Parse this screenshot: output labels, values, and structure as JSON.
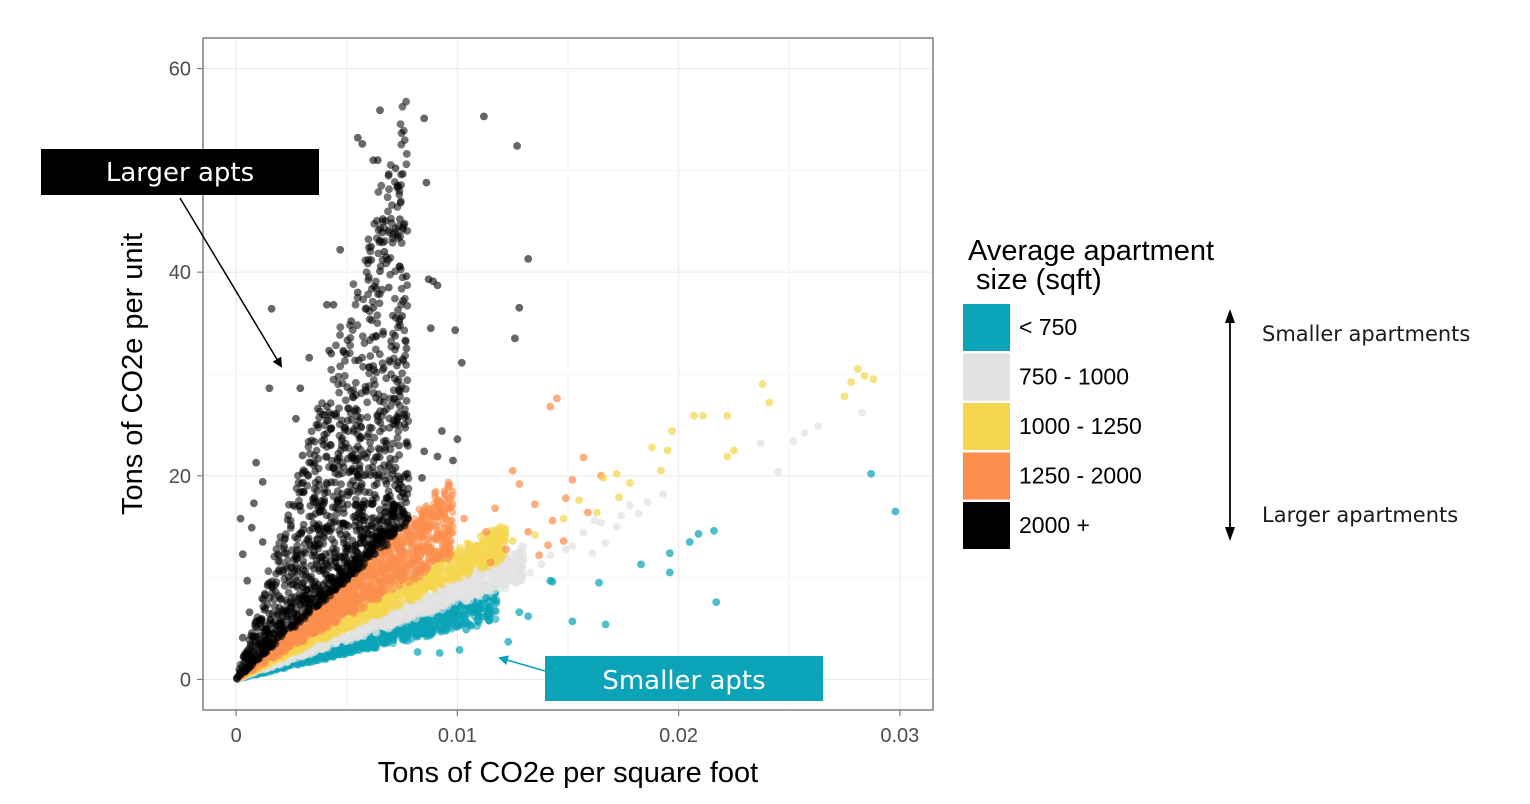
{
  "chart_data": {
    "type": "scatter",
    "xlabel": "Tons of CO2e per square foot",
    "ylabel": "Tons of CO2e per unit",
    "xlim": [
      -0.0015,
      0.0315
    ],
    "ylim": [
      -3,
      63
    ],
    "x_ticks": [
      {
        "value": 0,
        "label": "0"
      },
      {
        "value": 0.01,
        "label": "0.01"
      },
      {
        "value": 0.02,
        "label": "0.02"
      },
      {
        "value": 0.03,
        "label": "0.03"
      }
    ],
    "y_ticks": [
      {
        "value": 0,
        "label": "0"
      },
      {
        "value": 20,
        "label": "20"
      },
      {
        "value": 40,
        "label": "40"
      },
      {
        "value": 60,
        "label": "60"
      }
    ],
    "grid": true,
    "legend": {
      "title_lines": [
        "Average apartment",
        " size (sqft)"
      ],
      "placement": "right",
      "entries": [
        {
          "label": "< 750",
          "color": "#0aa3b8"
        },
        {
          "label": "750 - 1000",
          "color": "#e2e2e2"
        },
        {
          "label": "1000 - 1250",
          "color": "#f5d54e"
        },
        {
          "label": "1250 - 2000",
          "color": "#fc8d4c"
        },
        {
          "label": "2000 +",
          "color": "#000000"
        }
      ]
    },
    "scale_note": {
      "top": "Smaller apartments",
      "bottom": "Larger apartments"
    },
    "annotations": [
      {
        "text": "Larger apts",
        "style": "black-box",
        "points_to": [
          0.0021,
          29.5
        ]
      },
      {
        "text": "Smaller apts",
        "style": "teal-box",
        "points_to": [
          0.0118,
          2.2
        ]
      }
    ],
    "series": [
      {
        "color": "#fc8d4c",
        "points": [
          [
            0.0142,
            26.8
          ],
          [
            0.0145,
            27.6
          ],
          [
            0.0125,
            20.5
          ],
          [
            0.0128,
            19.2
          ],
          [
            0.0135,
            17.2
          ],
          [
            0.0143,
            15.6
          ],
          [
            0.0132,
            14.5
          ],
          [
            0.0148,
            13.6
          ],
          [
            0.0157,
            21.8
          ],
          [
            0.0152,
            19.6
          ],
          [
            0.0149,
            17.8
          ],
          [
            0.0159,
            16.4
          ],
          [
            0.0165,
            20
          ],
          [
            0.0117,
            16.8
          ],
          [
            0.0113,
            14.5
          ],
          [
            0.0097,
            13.6
          ],
          [
            0.0082,
            12.8
          ],
          [
            0.0066,
            10.6
          ],
          [
            0.0103,
            15.8
          ],
          [
            0.0122,
            12.8
          ],
          [
            0.0137,
            12.2
          ],
          [
            0.0141,
            13.2
          ],
          [
            0.0115,
            11.5
          ]
        ]
      },
      {
        "color": "#f5d54e",
        "points": [
          [
            0.0238,
            29
          ],
          [
            0.0241,
            27.2
          ],
          [
            0.0278,
            29.2
          ],
          [
            0.0281,
            30.5
          ],
          [
            0.0284,
            29.8
          ],
          [
            0.0288,
            29.5
          ],
          [
            0.0275,
            27.8
          ],
          [
            0.0207,
            25.9
          ],
          [
            0.0211,
            25.9
          ],
          [
            0.0222,
            25.9
          ],
          [
            0.0197,
            24.4
          ],
          [
            0.0195,
            22.5
          ],
          [
            0.0188,
            22.8
          ],
          [
            0.0222,
            21.9
          ],
          [
            0.0225,
            22.5
          ],
          [
            0.0192,
            20.5
          ],
          [
            0.0178,
            19.3
          ],
          [
            0.0172,
            20.2
          ],
          [
            0.0173,
            17.9
          ],
          [
            0.0155,
            17.6
          ],
          [
            0.0163,
            16.4
          ],
          [
            0.0166,
            19.8
          ],
          [
            0.0148,
            15.8
          ],
          [
            0.0135,
            14.2
          ],
          [
            0.0125,
            13.6
          ]
        ]
      },
      {
        "color": "#e2e2e2",
        "points": [
          [
            0.0283,
            26.2
          ],
          [
            0.0263,
            24.9
          ],
          [
            0.0257,
            24.2
          ],
          [
            0.0252,
            23.4
          ],
          [
            0.0237,
            23.2
          ],
          [
            0.0245,
            20.4
          ],
          [
            0.0193,
            18.2
          ],
          [
            0.0186,
            17.4
          ],
          [
            0.0178,
            17.1
          ],
          [
            0.0182,
            16.3
          ],
          [
            0.0174,
            16.1
          ],
          [
            0.0165,
            15.4
          ],
          [
            0.0162,
            15.6
          ],
          [
            0.0172,
            15
          ],
          [
            0.0157,
            14.4
          ],
          [
            0.0167,
            13.4
          ],
          [
            0.0152,
            13.1
          ],
          [
            0.0161,
            12.4
          ],
          [
            0.0149,
            12.8
          ],
          [
            0.0142,
            12.2
          ],
          [
            0.0138,
            11.3
          ],
          [
            0.0133,
            10.5
          ],
          [
            0.0129,
            9.7
          ]
        ]
      },
      {
        "color": "#0aa3b8",
        "points": [
          [
            0.0287,
            20.2
          ],
          [
            0.0298,
            16.5
          ],
          [
            0.0216,
            14.6
          ],
          [
            0.0209,
            14.3
          ],
          [
            0.0205,
            13.5
          ],
          [
            0.0183,
            11.3
          ],
          [
            0.0196,
            12.4
          ],
          [
            0.0196,
            10.5
          ],
          [
            0.0217,
            7.6
          ],
          [
            0.0164,
            9.5
          ],
          [
            0.0167,
            5.4
          ],
          [
            0.0152,
            5.7
          ],
          [
            0.0142,
            9.7
          ],
          [
            0.0143,
            9.6
          ],
          [
            0.0128,
            6.6
          ],
          [
            0.0123,
            3.7
          ],
          [
            0.0132,
            6.2
          ],
          [
            0.0101,
            2.9
          ],
          [
            0.0082,
            2.7
          ],
          [
            0.0092,
            2.6
          ],
          [
            0.0113,
            8
          ],
          [
            0.0104,
            4.9
          ]
        ]
      },
      {
        "color": "#000000",
        "points": [
          [
            0.0065,
            55.9
          ],
          [
            0.0085,
            55.1
          ],
          [
            0.0112,
            55.3
          ],
          [
            0.0127,
            52.4
          ],
          [
            0.0055,
            53.2
          ],
          [
            0.0057,
            52.6
          ],
          [
            0.0062,
            51
          ],
          [
            0.0064,
            51
          ],
          [
            0.0072,
            50.2
          ],
          [
            0.0086,
            48.8
          ],
          [
            0.0074,
            45.2
          ],
          [
            0.0072,
            44.3
          ],
          [
            0.0066,
            43.9
          ],
          [
            0.0065,
            43.1
          ],
          [
            0.0047,
            42.2
          ],
          [
            0.0061,
            42.5
          ],
          [
            0.0067,
            42
          ],
          [
            0.0061,
            41.2
          ],
          [
            0.0132,
            41.3
          ],
          [
            0.0065,
            40.1
          ],
          [
            0.0077,
            39.6
          ],
          [
            0.0087,
            39.3
          ],
          [
            0.0089,
            39.1
          ],
          [
            0.0091,
            38.7
          ],
          [
            0.0069,
            38.5
          ],
          [
            0.0055,
            38
          ],
          [
            0.0041,
            36.8
          ],
          [
            0.0044,
            36.8
          ],
          [
            0.0016,
            36.4
          ],
          [
            0.0062,
            36.5
          ],
          [
            0.0128,
            36.5
          ],
          [
            0.0052,
            35.2
          ],
          [
            0.0075,
            35.7
          ],
          [
            0.0088,
            34.5
          ],
          [
            0.0099,
            34.3
          ],
          [
            0.0126,
            33.5
          ],
          [
            0.0077,
            32.5
          ],
          [
            0.0102,
            31.1
          ],
          [
            0.0042,
            32.3
          ],
          [
            0.0043,
            32
          ],
          [
            0.0033,
            31.6
          ],
          [
            0.0015,
            28.6
          ],
          [
            0.0029,
            28.6
          ],
          [
            0.0027,
            25.6
          ],
          [
            0.0041,
            26.8
          ],
          [
            0.0093,
            24.4
          ],
          [
            0.01,
            23.6
          ],
          [
            0.0009,
            21.3
          ],
          [
            0.003,
            22
          ],
          [
            0.0085,
            22.4
          ],
          [
            0.0098,
            21.5
          ],
          [
            0.0091,
            21.9
          ],
          [
            0.0084,
            19.8
          ],
          [
            0.0012,
            19.4
          ],
          [
            0.0008,
            17.3
          ],
          [
            0.0002,
            15.8
          ],
          [
            0.0007,
            14.9
          ],
          [
            0.0012,
            13.5
          ],
          [
            0.0003,
            12.3
          ],
          [
            0.0005,
            9.7
          ],
          [
            0.0006,
            6.6
          ],
          [
            0.0003,
            4.1
          ]
        ]
      }
    ],
    "clouds": [
      {
        "color": "#0aa3b8",
        "min_slope": 500,
        "max_slope": 760,
        "x_max": 0.0118,
        "count": 700
      },
      {
        "color": "#e2e2e2",
        "min_slope": 750,
        "max_slope": 1000,
        "x_max": 0.013,
        "count": 750
      },
      {
        "color": "#f5d54e",
        "min_slope": 1000,
        "max_slope": 1250,
        "x_max": 0.0122,
        "count": 700
      },
      {
        "color": "#fc8d4c",
        "min_slope": 1250,
        "max_slope": 2000,
        "x_max": 0.0098,
        "count": 950
      },
      {
        "color": "#000000",
        "min_slope": 2000,
        "max_slope": 7200,
        "x_max": 0.0078,
        "count": 1300
      }
    ]
  }
}
